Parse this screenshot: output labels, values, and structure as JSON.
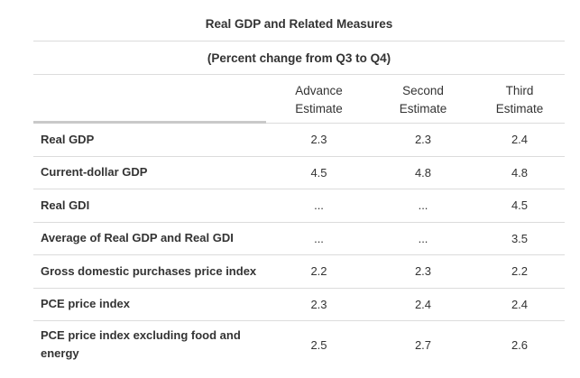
{
  "table": {
    "title": "Real GDP and Related Measures",
    "subtitle": "(Percent change from Q3 to Q4)",
    "columns": [
      {
        "line1": "Advance",
        "line2": "Estimate"
      },
      {
        "line1": "Second",
        "line2": "Estimate"
      },
      {
        "line1": "Third",
        "line2": "Estimate"
      }
    ],
    "rows": [
      {
        "label": "Real GDP",
        "values": [
          "2.3",
          "2.3",
          "2.4"
        ]
      },
      {
        "label": "Current-dollar GDP",
        "values": [
          "4.5",
          "4.8",
          "4.8"
        ]
      },
      {
        "label": "Real GDI",
        "values": [
          "...",
          "...",
          "4.5"
        ]
      },
      {
        "label": "Average of Real GDP and Real GDI",
        "values": [
          "...",
          "...",
          "3.5"
        ]
      },
      {
        "label": "Gross domestic purchases price index",
        "values": [
          "2.2",
          "2.3",
          "2.2"
        ]
      },
      {
        "label": "PCE price index",
        "values": [
          "2.3",
          "2.4",
          "2.4"
        ]
      },
      {
        "label": "PCE price index excluding food and energy",
        "values": [
          "2.5",
          "2.7",
          "2.6"
        ]
      }
    ]
  }
}
